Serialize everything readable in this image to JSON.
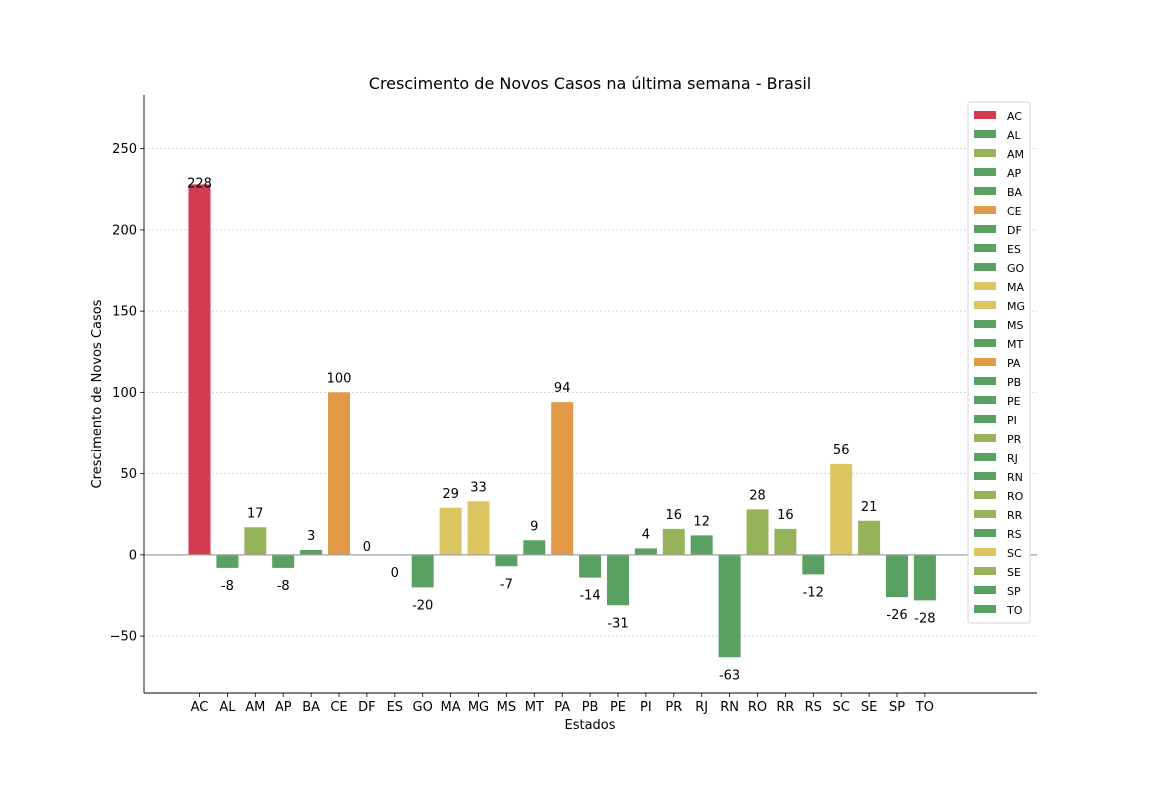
{
  "chart_data": {
    "type": "bar",
    "title": "Crescimento de Novos Casos na última semana - Brasil",
    "xlabel": "Estados",
    "ylabel": "Crescimento de Novos Casos",
    "ylim": [
      -85,
      283
    ],
    "yticks": [
      -50,
      0,
      50,
      100,
      150,
      200,
      250
    ],
    "ytick_labels": [
      "−50",
      "0",
      "50",
      "100",
      "150",
      "200",
      "250"
    ],
    "grid": true,
    "legend_position": "top-right",
    "categories": [
      "AC",
      "AL",
      "AM",
      "AP",
      "BA",
      "CE",
      "DF",
      "ES",
      "GO",
      "MA",
      "MG",
      "MS",
      "MT",
      "PA",
      "PB",
      "PE",
      "PI",
      "PR",
      "RJ",
      "RN",
      "RO",
      "RR",
      "RS",
      "SC",
      "SE",
      "SP",
      "TO"
    ],
    "values": [
      228,
      -8,
      17,
      -8,
      3,
      100,
      0,
      0,
      -20,
      29,
      33,
      -7,
      9,
      94,
      -14,
      -31,
      4,
      16,
      12,
      -63,
      28,
      16,
      -12,
      56,
      21,
      -26,
      -28
    ],
    "data_labels": [
      "228",
      "-8",
      "17",
      "-8",
      "3",
      "100",
      "0",
      "0",
      "-20",
      "29",
      "33",
      "-7",
      "9",
      "94",
      "-14",
      "-31",
      "4",
      "16",
      "12",
      "-63",
      "28",
      "16",
      "-12",
      "56",
      "21",
      "-26",
      "-28"
    ],
    "colors": [
      "#d43b50",
      "#5aa063",
      "#96b35a",
      "#5aa063",
      "#5aa063",
      "#e09a48",
      "#5aa063",
      "#5aa063",
      "#5aa063",
      "#dbc560",
      "#dbc560",
      "#5aa063",
      "#5aa063",
      "#e09a48",
      "#5aa063",
      "#5aa063",
      "#5aa063",
      "#96b35a",
      "#5aa063",
      "#5aa063",
      "#96b35a",
      "#96b35a",
      "#5aa063",
      "#dbc560",
      "#96b35a",
      "#5aa063",
      "#5aa063"
    ]
  }
}
